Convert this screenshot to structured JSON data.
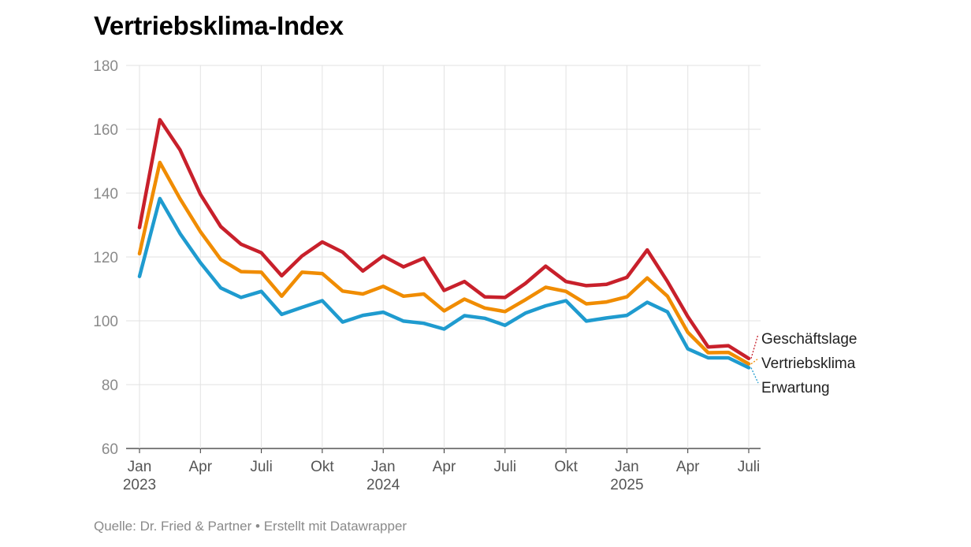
{
  "title": "Vertriebsklima-Index",
  "source": "Quelle: Dr. Fried & Partner • Erstellt mit Datawrapper",
  "chart_data": {
    "type": "line",
    "title": "Vertriebsklima-Index",
    "ylim": [
      60,
      180
    ],
    "y_ticks": [
      60,
      80,
      100,
      120,
      140,
      160,
      180
    ],
    "grid": true,
    "x": [
      "2023-01",
      "2023-02",
      "2023-03",
      "2023-04",
      "2023-05",
      "2023-06",
      "2023-07",
      "2023-08",
      "2023-09",
      "2023-10",
      "2023-11",
      "2023-12",
      "2024-01",
      "2024-02",
      "2024-03",
      "2024-04",
      "2024-05",
      "2024-06",
      "2024-07",
      "2024-08",
      "2024-09",
      "2024-10",
      "2024-11",
      "2024-12",
      "2025-01",
      "2025-02",
      "2025-03",
      "2025-04",
      "2025-05",
      "2025-06",
      "2025-07"
    ],
    "x_tick_labels": [
      {
        "x": "2023-01",
        "label": "Jan",
        "year": "2023"
      },
      {
        "x": "2023-04",
        "label": "Apr",
        "year": ""
      },
      {
        "x": "2023-07",
        "label": "Juli",
        "year": ""
      },
      {
        "x": "2023-10",
        "label": "Okt",
        "year": ""
      },
      {
        "x": "2024-01",
        "label": "Jan",
        "year": "2024"
      },
      {
        "x": "2024-04",
        "label": "Apr",
        "year": ""
      },
      {
        "x": "2024-07",
        "label": "Juli",
        "year": ""
      },
      {
        "x": "2024-10",
        "label": "Okt",
        "year": ""
      },
      {
        "x": "2025-01",
        "label": "Jan",
        "year": "2025"
      },
      {
        "x": "2025-04",
        "label": "Apr",
        "year": ""
      },
      {
        "x": "2025-07",
        "label": "Juli",
        "year": ""
      }
    ],
    "series": [
      {
        "name": "Geschäftslage",
        "color": "#c8202b",
        "values": [
          129.2,
          163.0,
          153.5,
          139.6,
          129.5,
          124.0,
          121.3,
          114.1,
          120.3,
          124.7,
          121.5,
          115.6,
          120.3,
          116.9,
          119.6,
          109.5,
          112.3,
          107.5,
          107.3,
          111.7,
          117.1,
          112.3,
          111.0,
          111.4,
          113.6,
          122.2,
          112.3,
          101.3,
          91.8,
          92.2,
          88.2
        ]
      },
      {
        "name": "Vertriebsklima",
        "color": "#f08c00",
        "values": [
          121.0,
          149.6,
          138.2,
          127.9,
          119.2,
          115.4,
          115.2,
          107.7,
          115.2,
          114.8,
          109.3,
          108.4,
          110.8,
          107.7,
          108.4,
          103.1,
          106.8,
          104.0,
          102.9,
          106.6,
          110.5,
          109.2,
          105.3,
          105.9,
          107.5,
          113.4,
          107.7,
          96.4,
          90.0,
          90.1,
          86.5
        ]
      },
      {
        "name": "Erwartung",
        "color": "#1f9bcf",
        "values": [
          113.9,
          138.3,
          127.3,
          118.2,
          110.3,
          107.3,
          109.2,
          102.0,
          104.2,
          106.3,
          99.6,
          101.7,
          102.7,
          99.9,
          99.2,
          97.4,
          101.6,
          100.8,
          98.6,
          102.4,
          104.7,
          106.3,
          99.9,
          100.9,
          101.7,
          105.8,
          102.8,
          91.2,
          88.4,
          88.4,
          85.3
        ]
      }
    ]
  }
}
